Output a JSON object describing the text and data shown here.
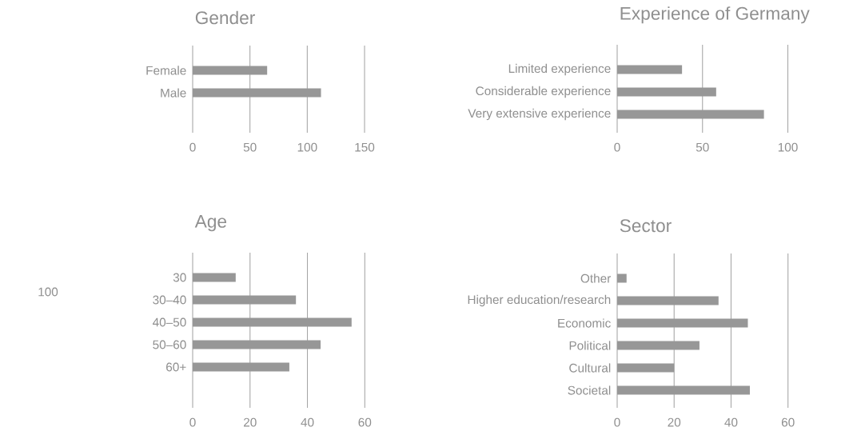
{
  "chart_data": [
    {
      "type": "bar",
      "orientation": "horizontal",
      "title": "Gender",
      "categories": [
        "Female",
        "Male"
      ],
      "values": [
        65,
        112
      ],
      "color": "#979797",
      "xlim": [
        0,
        150
      ],
      "xticks": [
        0,
        50,
        100,
        150
      ],
      "grid": "x"
    },
    {
      "type": "bar",
      "orientation": "horizontal",
      "title": "Experience of Germany",
      "categories": [
        "Limited experience",
        "Considerable experience",
        "Very extensive experience"
      ],
      "values": [
        38,
        58,
        86
      ],
      "color": "#979797",
      "xlim": [
        0,
        100
      ],
      "xticks": [
        0,
        50,
        100
      ],
      "grid": "x"
    },
    {
      "type": "bar",
      "orientation": "horizontal",
      "title": "Age",
      "categories": [
        "30",
        "30–40",
        "40–50",
        "50–60",
        "60+"
      ],
      "values": [
        15,
        36,
        55.4,
        44.6,
        33.7
      ],
      "color": "#979797",
      "xlim": [
        0,
        60
      ],
      "xticks": [
        0,
        20,
        40,
        60
      ],
      "grid": "x",
      "annotations": [
        "100"
      ]
    },
    {
      "type": "bar",
      "orientation": "horizontal",
      "title": "Sector",
      "categories": [
        "Other",
        "Higher education/research",
        "Economic",
        "Political",
        "Cultural",
        "Societal"
      ],
      "values": [
        3.3,
        35.6,
        45.9,
        28.9,
        20,
        46.6
      ],
      "color": "#979797",
      "xlim": [
        0,
        60
      ],
      "xticks": [
        0,
        20,
        40,
        60
      ],
      "grid": "x"
    }
  ]
}
